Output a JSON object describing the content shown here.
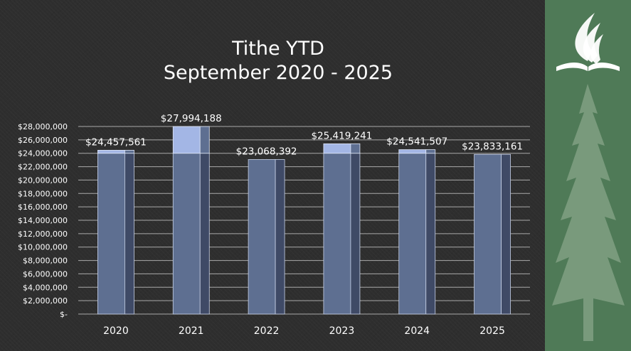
{
  "slide": {
    "title_line1": "Tithe YTD",
    "title_line2": "September 2020 - 2025"
  },
  "colors": {
    "background": "#2e2e2e",
    "bar_front": "#5e6f91",
    "bar_side": "#3f4a66",
    "bar_highlight": "#a3b6e5",
    "side_panel": "#4f7a57",
    "logo": "#ffffff"
  },
  "icons": [
    "adventist-flame-bible-logo",
    "pine-tree-icon"
  ],
  "chart_data": {
    "type": "bar",
    "title": "Tithe YTD September 2020 - 2025",
    "categories": [
      "2020",
      "2021",
      "2022",
      "2023",
      "2024",
      "2025"
    ],
    "values": [
      24457561,
      27994188,
      23068392,
      25419241,
      24541507,
      23833161
    ],
    "data_labels": [
      "$24,457,561",
      "$27,994,188",
      "$23,068,392",
      "$25,419,241",
      "$24,541,507",
      "$23,833,161"
    ],
    "xlabel": "",
    "ylabel": "",
    "ylim": [
      0,
      28000000
    ],
    "ytick_values": [
      0,
      2000000,
      4000000,
      6000000,
      8000000,
      10000000,
      12000000,
      14000000,
      16000000,
      18000000,
      20000000,
      22000000,
      24000000,
      26000000,
      28000000
    ],
    "ytick_labels": [
      "$-",
      "$2,000,000",
      "$4,000,000",
      "$6,000,000",
      "$8,000,000",
      "$10,000,000",
      "$12,000,000",
      "$14,000,000",
      "$16,000,000",
      "$18,000,000",
      "$20,000,000",
      "$22,000,000",
      "$24,000,000",
      "$26,000,000",
      "$28,000,000"
    ],
    "highlight_threshold": 24000000,
    "grid": true,
    "legend": "none"
  }
}
